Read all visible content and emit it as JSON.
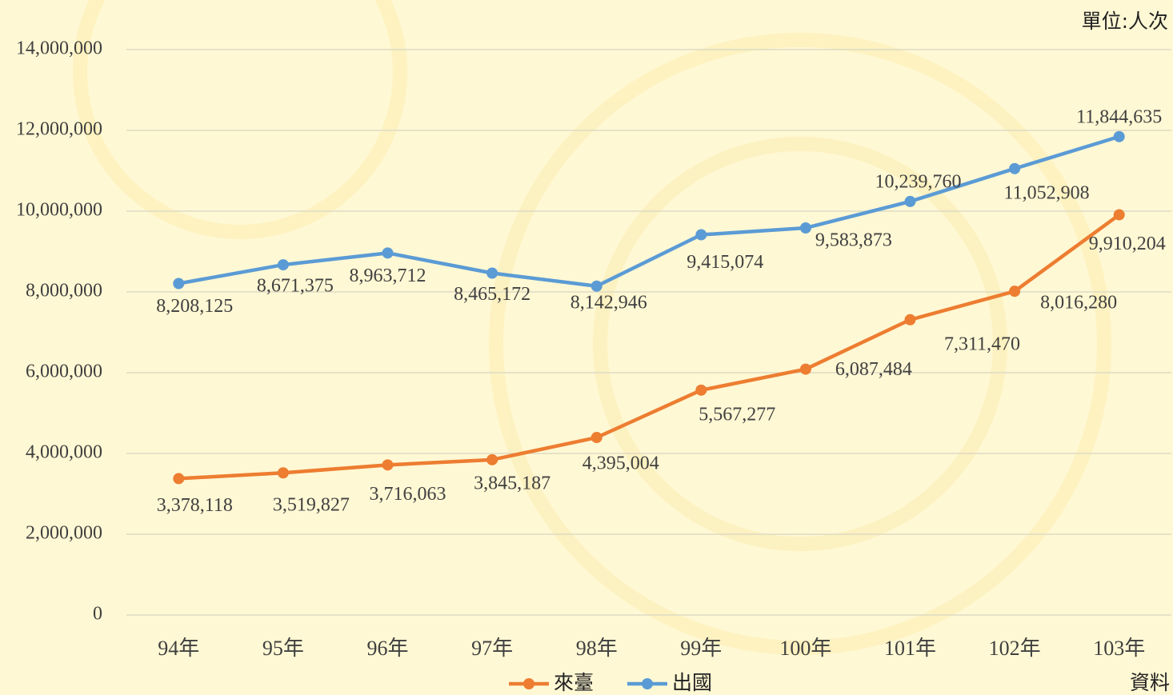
{
  "chart_data": {
    "type": "line",
    "unit": "單位:人次",
    "source": "資料",
    "categories": [
      "94年",
      "95年",
      "96年",
      "97年",
      "98年",
      "99年",
      "100年",
      "101年",
      "102年",
      "103年"
    ],
    "series": [
      {
        "name": "來臺",
        "color": "#ED7D31",
        "values": [
          3378118,
          3519827,
          3716063,
          3845187,
          4395004,
          5567277,
          6087484,
          7311470,
          8016280,
          9910204
        ],
        "value_labels": [
          "3,378,118",
          "3,519,827",
          "3,716,063",
          "3,845,187",
          "4,395,004",
          "5,567,277",
          "6,087,484",
          "7,311,470",
          "8,016,280",
          "9,910,204"
        ]
      },
      {
        "name": "出國",
        "color": "#5B9BD5",
        "values": [
          8208125,
          8671375,
          8963712,
          8465172,
          8142946,
          9415074,
          9583873,
          10239760,
          11052908,
          11844635
        ],
        "value_labels": [
          "8,208,125",
          "8,671,375",
          "8,963,712",
          "8,465,172",
          "8,142,946",
          "9,415,074",
          "9,583,873",
          "10,239,760",
          "11,052,908",
          "11,844,635"
        ]
      }
    ],
    "ylim": [
      0,
      14000000
    ],
    "yticks": [
      0,
      {
        "value": 2000000,
        "label": "2,000,000"
      },
      {
        "value": 4000000,
        "label": "4,000,000"
      },
      {
        "value": 6000000,
        "label": "6,000,000"
      },
      {
        "value": 8000000,
        "label": "8,000,000"
      },
      {
        "value": 10000000,
        "label": "10,000,000"
      },
      {
        "value": 12000000,
        "label": "12,000,000"
      },
      {
        "value": 14000000,
        "label": "14,000,000"
      }
    ],
    "grid": true
  }
}
